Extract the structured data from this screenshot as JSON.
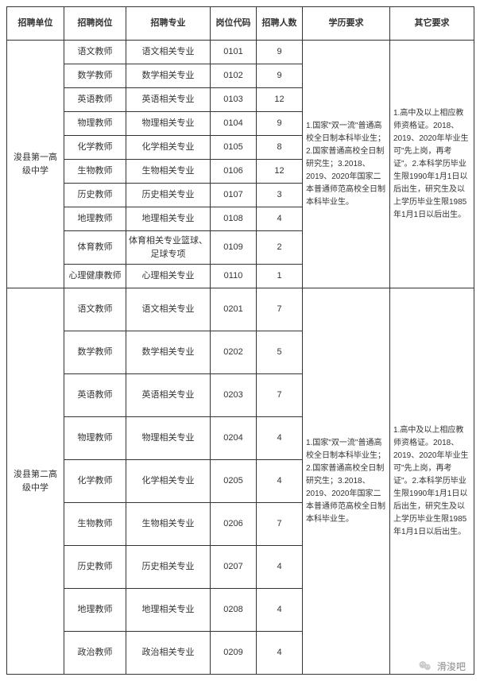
{
  "columns": {
    "unit": "招聘单位",
    "position": "招聘岗位",
    "major": "招聘专业",
    "code": "岗位代码",
    "count": "招聘人数",
    "edu": "学历要求",
    "other": "其它要求"
  },
  "col_widths": [
    "72",
    "78",
    "106",
    "58",
    "58",
    "110",
    "106"
  ],
  "units": [
    {
      "name": "浚县第一高级中学",
      "edu": "1.国家\"双一流\"普通高校全日制本科毕业生；2.国家普通高校全日制研究生；3.2018、2019、2020年国家二本普通师范高校全日制本科毕业生。",
      "other": "1.高中及以上相应教师资格证。2018、2019、2020年毕业生可\"先上岗，再考证\"。2.本科学历毕业生限1990年1月1日以后出生，研究生及以上学历毕业生限1985年1月1日以后出生。",
      "rows": [
        {
          "pos": "语文教师",
          "major": "语文相关专业",
          "code": "0101",
          "count": "9"
        },
        {
          "pos": "数学教师",
          "major": "数学相关专业",
          "code": "0102",
          "count": "9"
        },
        {
          "pos": "英语教师",
          "major": "英语相关专业",
          "code": "0103",
          "count": "12"
        },
        {
          "pos": "物理教师",
          "major": "物理相关专业",
          "code": "0104",
          "count": "9"
        },
        {
          "pos": "化学教师",
          "major": "化学相关专业",
          "code": "0105",
          "count": "8"
        },
        {
          "pos": "生物教师",
          "major": "生物相关专业",
          "code": "0106",
          "count": "12"
        },
        {
          "pos": "历史教师",
          "major": "历史相关专业",
          "code": "0107",
          "count": "3"
        },
        {
          "pos": "地理教师",
          "major": "地理相关专业",
          "code": "0108",
          "count": "4"
        },
        {
          "pos": "体育教师",
          "major": "体育相关专业篮球、足球专项",
          "code": "0109",
          "count": "2"
        },
        {
          "pos": "心理健康教师",
          "major": "心理相关专业",
          "code": "0110",
          "count": "1"
        }
      ]
    },
    {
      "name": "浚县第二高级中学",
      "edu": "1.国家\"双一流\"普通高校全日制本科毕业生；2.国家普通高校全日制研究生；3.2018、2019、2020年国家二本普通师范高校全日制本科毕业生。",
      "other": "1.高中及以上相应教师资格证。2018、2019、2020年毕业生可\"先上岗，再考证\"。2.本科学历毕业生限1990年1月1日以后出生，研究生及以上学历毕业生限1985年1月1日以后出生。",
      "rows": [
        {
          "pos": "语文教师",
          "major": "语文相关专业",
          "code": "0201",
          "count": "7"
        },
        {
          "pos": "数学教师",
          "major": "数学相关专业",
          "code": "0202",
          "count": "5"
        },
        {
          "pos": "英语教师",
          "major": "英语相关专业",
          "code": "0203",
          "count": "7"
        },
        {
          "pos": "物理教师",
          "major": "物理相关专业",
          "code": "0204",
          "count": "4"
        },
        {
          "pos": "化学教师",
          "major": "化学相关专业",
          "code": "0205",
          "count": "4"
        },
        {
          "pos": "生物教师",
          "major": "生物相关专业",
          "code": "0206",
          "count": "7"
        },
        {
          "pos": "历史教师",
          "major": "历史相关专业",
          "code": "0207",
          "count": "4"
        },
        {
          "pos": "地理教师",
          "major": "地理相关专业",
          "code": "0208",
          "count": "4"
        },
        {
          "pos": "政治教师",
          "major": "政治相关专业",
          "code": "0209",
          "count": "4"
        }
      ]
    }
  ],
  "watermark": "滑浚吧"
}
